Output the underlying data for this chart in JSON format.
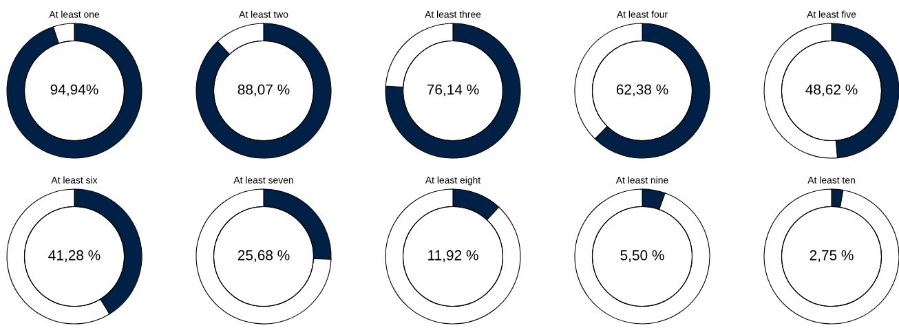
{
  "chart_data": [
    {
      "type": "donut",
      "title": "At least one",
      "categories": [
        null,
        null
      ],
      "values": [
        94.94,
        5.06
      ],
      "colors": [
        "#002045",
        "#ffffff"
      ],
      "annotations": [
        "94,94%"
      ]
    },
    {
      "type": "donut",
      "title": "At least two",
      "categories": [
        null,
        null
      ],
      "values": [
        88.07,
        11.93
      ],
      "colors": [
        "#002045",
        "#ffffff"
      ],
      "annotations": [
        "88,07 %"
      ]
    },
    {
      "type": "donut",
      "title": "At least three",
      "categories": [
        null,
        null
      ],
      "values": [
        76.14,
        23.86
      ],
      "colors": [
        "#002045",
        "#ffffff"
      ],
      "annotations": [
        "76,14 %"
      ]
    },
    {
      "type": "donut",
      "title": "At least four",
      "categories": [
        null,
        null
      ],
      "values": [
        62.38,
        37.62
      ],
      "colors": [
        "#002045",
        "#ffffff"
      ],
      "annotations": [
        "62,38 %"
      ]
    },
    {
      "type": "donut",
      "title": "At least five",
      "categories": [
        null,
        null
      ],
      "values": [
        48.62,
        51.38
      ],
      "colors": [
        "#002045",
        "#ffffff"
      ],
      "annotations": [
        "48,62 %"
      ]
    },
    {
      "type": "donut",
      "title": "At least six",
      "categories": [
        null,
        null
      ],
      "values": [
        41.28,
        58.72
      ],
      "colors": [
        "#002045",
        "#ffffff"
      ],
      "annotations": [
        "41,28 %"
      ]
    },
    {
      "type": "donut",
      "title": "At least seven",
      "categories": [
        null,
        null
      ],
      "values": [
        25.68,
        74.32
      ],
      "colors": [
        "#002045",
        "#ffffff"
      ],
      "annotations": [
        "25,68 %"
      ]
    },
    {
      "type": "donut",
      "title": "At least eight",
      "categories": [
        null,
        null
      ],
      "values": [
        11.92,
        88.08
      ],
      "colors": [
        "#002045",
        "#ffffff"
      ],
      "annotations": [
        "11,92 %"
      ]
    },
    {
      "type": "donut",
      "title": "At least nine",
      "categories": [
        null,
        null
      ],
      "values": [
        5.5,
        94.5
      ],
      "colors": [
        "#002045",
        "#ffffff"
      ],
      "annotations": [
        "5,50 %"
      ]
    },
    {
      "type": "donut",
      "title": "At least ten",
      "categories": [
        null,
        null
      ],
      "values": [
        2.75,
        97.25
      ],
      "colors": [
        "#002045",
        "#ffffff"
      ],
      "annotations": [
        "2,75 %"
      ]
    }
  ]
}
